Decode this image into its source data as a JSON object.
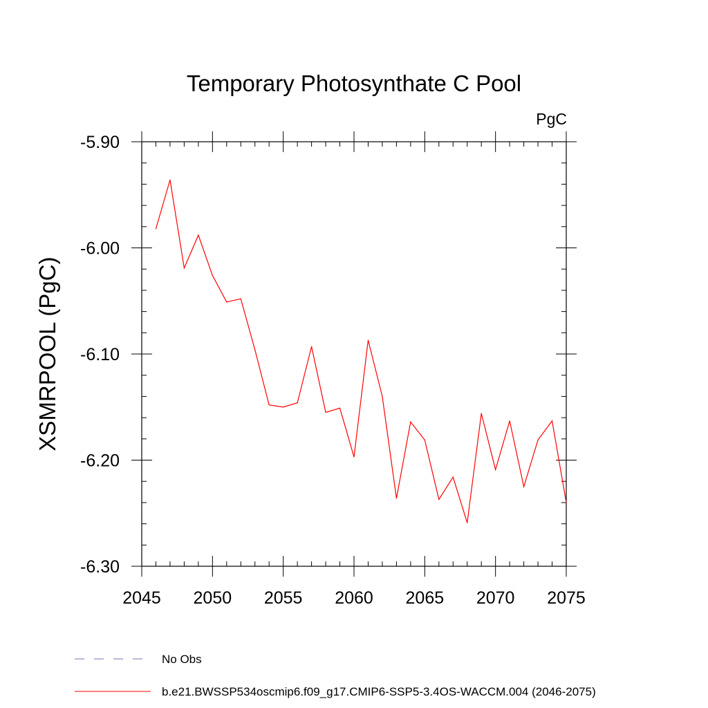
{
  "chart_data": {
    "type": "line",
    "title": "Temporary Photosynthate C Pool",
    "units_label": "PgC",
    "xlabel": "",
    "ylabel": "XSMRPOOL  (PgC)",
    "xlim": [
      2045,
      2075
    ],
    "ylim": [
      -6.3,
      -5.9
    ],
    "x_ticks": [
      2045,
      2050,
      2055,
      2060,
      2065,
      2070,
      2075
    ],
    "y_ticks": [
      -5.9,
      -6.0,
      -6.1,
      -6.2,
      -6.3
    ],
    "x_tick_labels": [
      "2045",
      "2050",
      "2055",
      "2060",
      "2065",
      "2070",
      "2075"
    ],
    "y_tick_labels": [
      "-5.90",
      "-6.00",
      "-6.10",
      "-6.20",
      "-6.30"
    ],
    "series": [
      {
        "name": "b.e21.BWSSP534oscmip6.f09_g17.CMIP6-SSP5-3.4OS-WACCM.004 (2046-2075)",
        "color": "#ff0000",
        "x": [
          2046,
          2047,
          2048,
          2049,
          2050,
          2051,
          2052,
          2053,
          2054,
          2055,
          2056,
          2057,
          2058,
          2059,
          2060,
          2061,
          2062,
          2063,
          2064,
          2065,
          2066,
          2067,
          2068,
          2069,
          2070,
          2071,
          2072,
          2073,
          2074,
          2075
        ],
        "y": [
          -5.982,
          -5.936,
          -6.019,
          -5.988,
          -6.026,
          -6.051,
          -6.048,
          -6.096,
          -6.148,
          -6.15,
          -6.146,
          -6.093,
          -6.155,
          -6.151,
          -6.197,
          -6.087,
          -6.14,
          -6.236,
          -6.164,
          -6.181,
          -6.237,
          -6.216,
          -6.259,
          -6.156,
          -6.209,
          -6.163,
          -6.225,
          -6.181,
          -6.163,
          -6.24
        ]
      }
    ],
    "legend": [
      {
        "label": "No Obs",
        "style": "dashed",
        "color": "#7b6fb0"
      },
      {
        "label": "b.e21.BWSSP534oscmip6.f09_g17.CMIP6-SSP5-3.4OS-WACCM.004 (2046-2075)",
        "style": "solid",
        "color": "#ff0000"
      }
    ]
  }
}
